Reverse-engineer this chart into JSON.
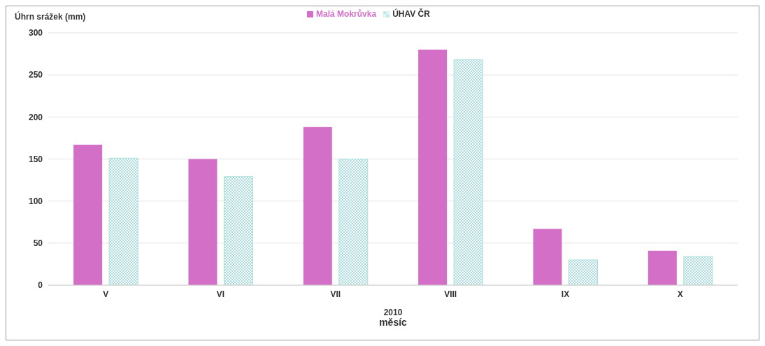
{
  "chart_data": {
    "type": "bar",
    "ylabel": "Úhrn srážek (mm)",
    "xlabel": "měsíc",
    "annotations": [
      "2010"
    ],
    "categories": [
      "V",
      "VI",
      "VII",
      "VIII",
      "IX",
      "X"
    ],
    "series": [
      {
        "name": "Malá Mokrůvka",
        "color": "#d36fc6",
        "values": [
          167,
          150,
          188,
          280,
          67,
          41
        ]
      },
      {
        "name": "ÚHAV ČR",
        "color": "#a9dede",
        "values": [
          151,
          129,
          150,
          268,
          30,
          34
        ]
      }
    ],
    "ylim": [
      0,
      300
    ],
    "yticks": [
      0,
      50,
      100,
      150,
      200,
      250,
      300
    ],
    "grid": "y",
    "legend": "top"
  }
}
